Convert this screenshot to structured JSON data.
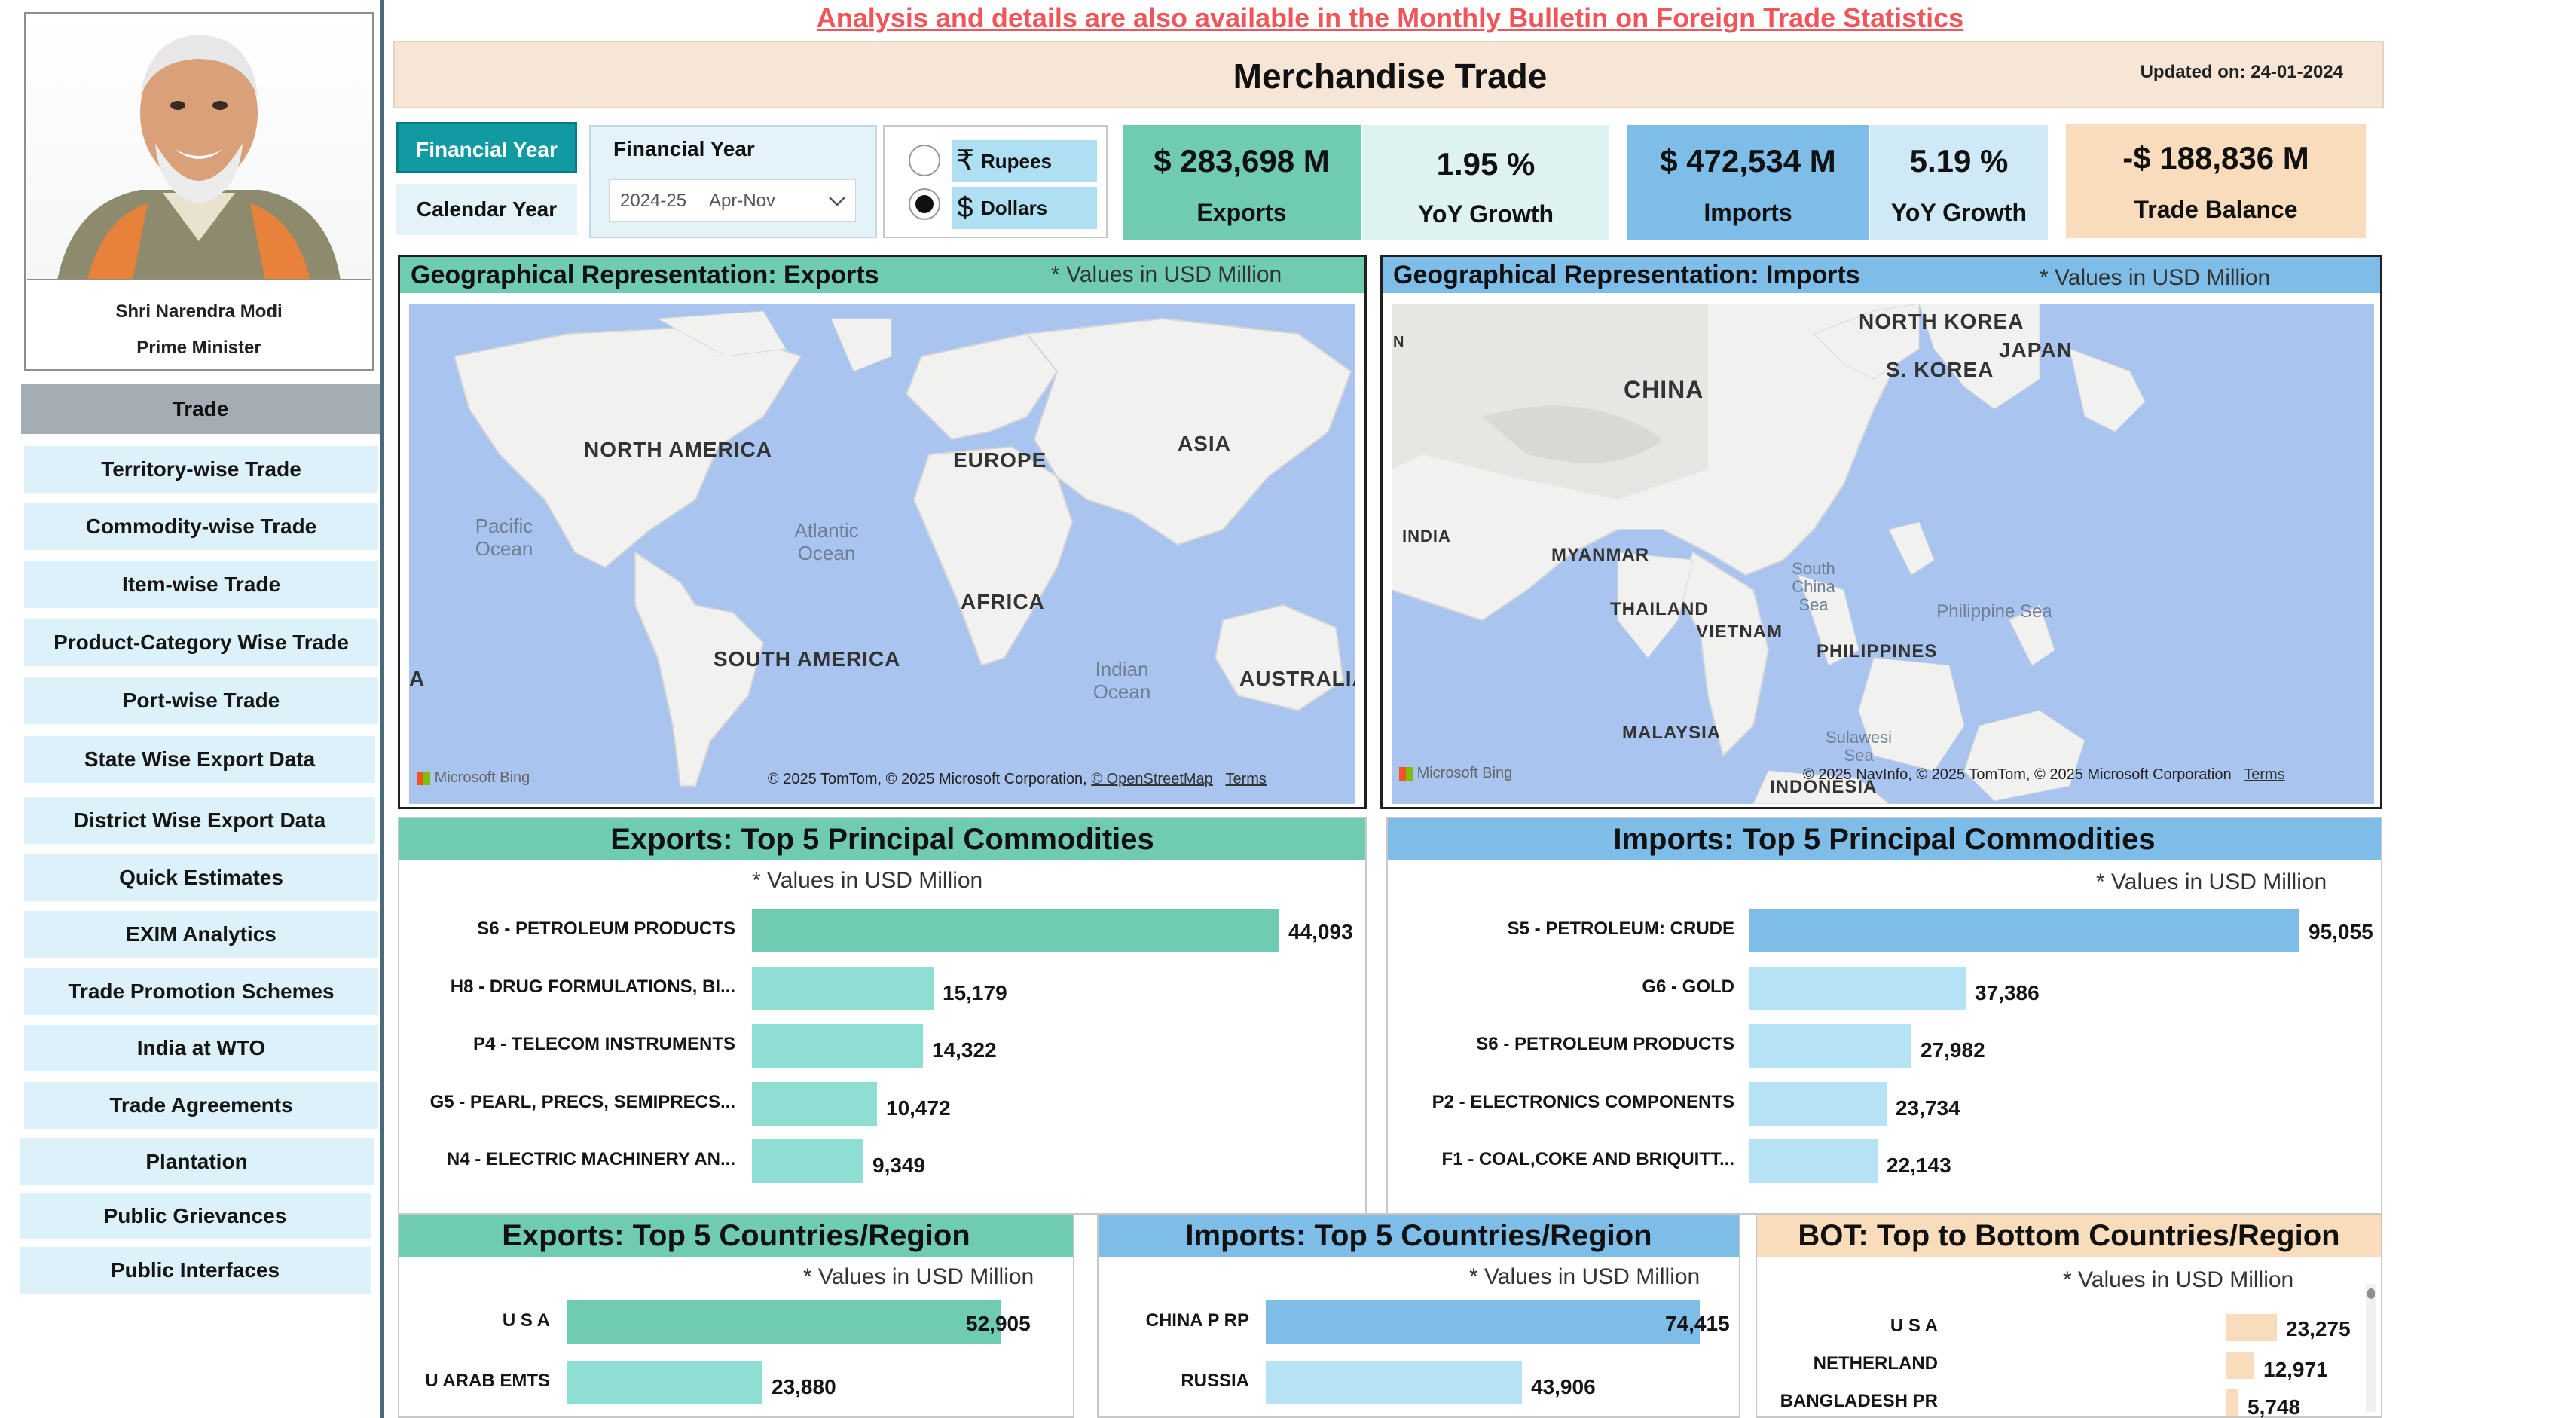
{
  "sidebar": {
    "pm_name": "Shri Narendra Modi",
    "pm_title": "Prime Minister",
    "active_item": "Trade",
    "items": [
      "Territory-wise Trade",
      "Commodity-wise Trade",
      "Item-wise Trade",
      "Product-Category Wise Trade",
      "Port-wise Trade",
      "State Wise Export Data",
      "District Wise Export Data",
      "Quick Estimates",
      "EXIM Analytics",
      "Trade Promotion Schemes",
      "India at WTO",
      "Trade Agreements",
      "Plantation",
      "Public Grievances",
      "Public Interfaces"
    ]
  },
  "bulletin_link": "Analysis and details are also available in the Monthly Bulletin on Foreign Trade Statistics",
  "header": {
    "title": "Merchandise Trade",
    "updated": "Updated on: 24-01-2024"
  },
  "filters": {
    "financial_year_btn": "Financial Year",
    "calendar_year_btn": "Calendar Year",
    "fy_label": "Financial Year",
    "fy_year": "2024-25",
    "fy_period": "Apr-Nov",
    "currency_rupees": "Rupees",
    "currency_dollars": "Dollars",
    "rupee_symbol": "₹",
    "dollar_symbol": "$",
    "selected_currency": "Dollars"
  },
  "kpis": {
    "exports_value": "$ 283,698 M",
    "exports_label": "Exports",
    "exports_growth": "1.95 %",
    "exports_growth_label": "YoY Growth",
    "imports_value": "$ 472,534 M",
    "imports_label": "Imports",
    "imports_growth": "5.19 %",
    "imports_growth_label": "YoY Growth",
    "balance_value": "-$ 188,836 M",
    "balance_label": "Trade Balance"
  },
  "colors": {
    "exports": "#6fcbb1",
    "exports_light": "#8fded4",
    "imports": "#7dbde8",
    "imports_light": "#b6e2f6",
    "balance": "#f8dcbb",
    "sidebar_item": "#dcf1f9",
    "link_red": "#f0555a"
  },
  "map_exports": {
    "title": "Geographical Representation: Exports",
    "note": "* Values in USD Million",
    "labels": [
      "NORTH AMERICA",
      "EUROPE",
      "ASIA",
      "AFRICA",
      "SOUTH AMERICA",
      "AUSTRALIA",
      "A"
    ],
    "oceans": [
      "Pacific Ocean",
      "Atlantic Ocean",
      "Indian Ocean"
    ],
    "bing": "Microsoft Bing",
    "copyright": "© 2025 TomTom, © 2025 Microsoft Corporation,",
    "osm": "© OpenStreetMap",
    "terms": "Terms"
  },
  "map_imports": {
    "title": "Geographical Representation: Imports",
    "note": "* Values in USD Million",
    "labels": [
      "NORTH KOREA",
      "JAPAN",
      "S. KOREA",
      "CHINA",
      "INDIA",
      "MYANMAR",
      "THAILAND",
      "VIETNAM",
      "PHILIPPINES",
      "MALAYSIA",
      "INDONESIA",
      "N"
    ],
    "oceans": [
      "South China Sea",
      "Philippine Sea",
      "Sulawesi Sea"
    ],
    "bing": "Microsoft Bing",
    "copyright": "© 2025 NavInfo, © 2025 TomTom, © 2025 Microsoft Corporation",
    "terms": "Terms"
  },
  "exports_commodities": {
    "title": "Exports: Top 5 Principal Commodities",
    "note": "* Values in USD Million",
    "labels": [
      "S6 - PETROLEUM PRODUCTS",
      "H8 - DRUG FORMULATIONS, BI...",
      "P4 - TELECOM INSTRUMENTS",
      "G5 - PEARL, PRECS, SEMIPRECS...",
      "N4 - ELECTRIC MACHINERY AN..."
    ],
    "values": [
      44093,
      15179,
      14322,
      10472,
      9349
    ],
    "display": [
      "44,093",
      "15,179",
      "14,322",
      "10,472",
      "9,349"
    ]
  },
  "imports_commodities": {
    "title": "Imports: Top 5 Principal Commodities",
    "note": "* Values in USD Million",
    "labels": [
      "S5 - PETROLEUM: CRUDE",
      "G6 - GOLD",
      "S6 - PETROLEUM PRODUCTS",
      "P2 - ELECTRONICS COMPONENTS",
      "F1 - COAL,COKE AND BRIQUITT..."
    ],
    "values": [
      95055,
      37386,
      27982,
      23734,
      22143
    ],
    "display": [
      "95,055",
      "37,386",
      "27,982",
      "23,734",
      "22,143"
    ]
  },
  "exports_countries": {
    "title": "Exports: Top 5 Countries/Region",
    "note": "* Values in USD Million",
    "labels": [
      "U S A",
      "U ARAB EMTS"
    ],
    "values": [
      52905,
      23880
    ],
    "display": [
      "52,905",
      "23,880"
    ]
  },
  "imports_countries": {
    "title": "Imports: Top 5 Countries/Region",
    "note": "* Values in USD Million",
    "labels": [
      "CHINA P RP",
      "RUSSIA"
    ],
    "values": [
      74415,
      43906
    ],
    "display": [
      "74,415",
      "43,906"
    ]
  },
  "bot_countries": {
    "title": "BOT: Top to Bottom Countries/Region",
    "note": "* Values in USD Million",
    "labels": [
      "U S A",
      "NETHERLAND",
      "BANGLADESH PR"
    ],
    "values": [
      23275,
      12971,
      5748
    ],
    "display": [
      "23,275",
      "12,971",
      "5,748"
    ]
  }
}
